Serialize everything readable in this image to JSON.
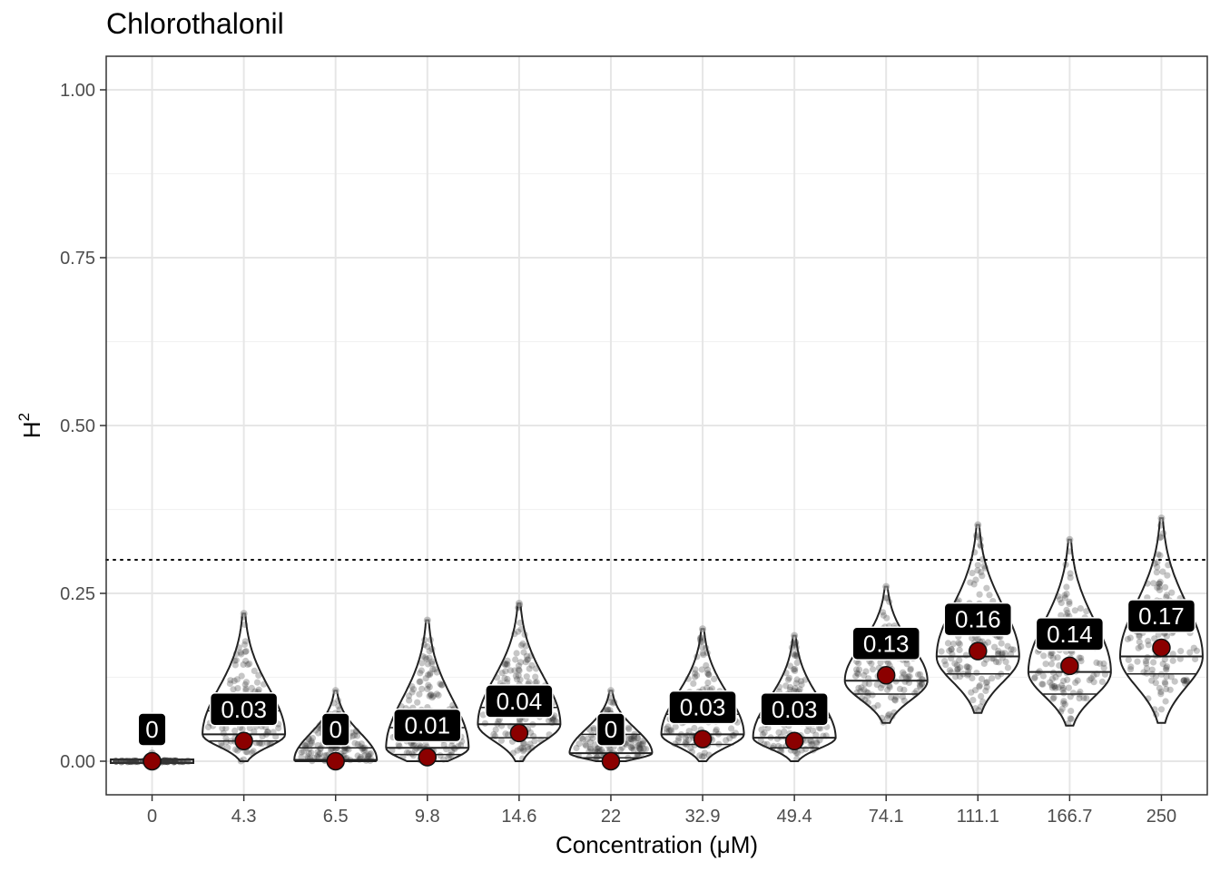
{
  "chart_data": {
    "type": "violin",
    "title": "Chlorothalonil",
    "xlabel": "Concentration (μM)",
    "ylabel": "H",
    "ylabel_superscript": "2",
    "categories": [
      "0",
      "4.3",
      "6.5",
      "9.8",
      "14.6",
      "22",
      "32.9",
      "49.4",
      "74.1",
      "111.1",
      "166.7",
      "250"
    ],
    "mean_values": [
      0.0,
      0.03,
      0.0,
      0.006,
      0.042,
      0.0,
      0.033,
      0.03,
      0.128,
      0.164,
      0.142,
      0.169
    ],
    "data_labels": [
      "0",
      "0.03",
      "0",
      "0.01",
      "0.04",
      "0",
      "0.03",
      "0.03",
      "0.13",
      "0.16",
      "0.14",
      "0.17"
    ],
    "medians": [
      0.0,
      0.04,
      0.002,
      0.02,
      0.055,
      0.012,
      0.04,
      0.035,
      0.12,
      0.156,
      0.133,
      0.156
    ],
    "distributions": [
      {
        "min": 0.0,
        "max": 0.012,
        "q1": 0.0,
        "q3": 0.004
      },
      {
        "min": 0.0,
        "max": 0.22,
        "q1": 0.03,
        "q3": 0.075
      },
      {
        "min": 0.0,
        "max": 0.105,
        "q1": 0.0,
        "q3": 0.02
      },
      {
        "min": 0.0,
        "max": 0.21,
        "q1": 0.01,
        "q3": 0.05
      },
      {
        "min": 0.0,
        "max": 0.235,
        "q1": 0.035,
        "q3": 0.08
      },
      {
        "min": 0.0,
        "max": 0.105,
        "q1": 0.005,
        "q3": 0.04
      },
      {
        "min": 0.0,
        "max": 0.197,
        "q1": 0.025,
        "q3": 0.07
      },
      {
        "min": 0.0,
        "max": 0.187,
        "q1": 0.02,
        "q3": 0.065
      },
      {
        "min": 0.057,
        "max": 0.26,
        "q1": 0.1,
        "q3": 0.165
      },
      {
        "min": 0.072,
        "max": 0.352,
        "q1": 0.13,
        "q3": 0.2
      },
      {
        "min": 0.053,
        "max": 0.33,
        "q1": 0.1,
        "q3": 0.18
      },
      {
        "min": 0.057,
        "max": 0.362,
        "q1": 0.13,
        "q3": 0.2
      }
    ],
    "reference_line": 0.3,
    "ylim": [
      -0.05,
      1.05
    ],
    "y_ticks": [
      0.0,
      0.25,
      0.5,
      0.75,
      1.0
    ],
    "y_tick_labels": [
      "0.00",
      "0.25",
      "0.50",
      "0.75",
      "1.00"
    ],
    "grid": true,
    "colors": {
      "mean_point": "#8b0000",
      "violin_outline": "#222222",
      "jitter_points": "#333333",
      "label_bg": "#000000",
      "grid_major": "#e6e6e6",
      "grid_minor": "#f2f2f2",
      "reference_line": "#000000"
    }
  }
}
